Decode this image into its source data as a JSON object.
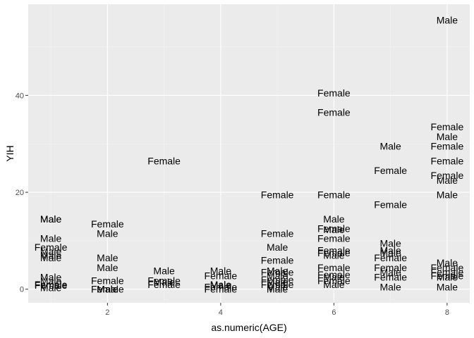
{
  "chart_data": {
    "type": "scatter",
    "geom": "text",
    "xlabel": "as.numeric(AGE)",
    "ylabel": "YIH",
    "xlim": [
      0.6,
      8.4
    ],
    "ylim": [
      -2.8,
      58.8
    ],
    "x_ticks": [
      2,
      4,
      6,
      8
    ],
    "y_ticks": [
      0,
      20,
      40
    ],
    "grid": true,
    "background": "#EBEBEB",
    "points": [
      {
        "x": 1,
        "y": 14.5,
        "label": "Male"
      },
      {
        "x": 1,
        "y": 14.5,
        "label": "Male"
      },
      {
        "x": 1,
        "y": 10.5,
        "label": "Male"
      },
      {
        "x": 1,
        "y": 8.7,
        "label": "Female"
      },
      {
        "x": 1,
        "y": 7.8,
        "label": "Male"
      },
      {
        "x": 1,
        "y": 7.0,
        "label": "Male"
      },
      {
        "x": 1,
        "y": 6.5,
        "label": "Male"
      },
      {
        "x": 1,
        "y": 2.5,
        "label": "Male"
      },
      {
        "x": 1,
        "y": 1.7,
        "label": "Male"
      },
      {
        "x": 1,
        "y": 1.0,
        "label": "Female"
      },
      {
        "x": 1,
        "y": 0.8,
        "label": "Female"
      },
      {
        "x": 1,
        "y": 0.3,
        "label": "Male"
      },
      {
        "x": 2,
        "y": 13.5,
        "label": "Female"
      },
      {
        "x": 2,
        "y": 11.5,
        "label": "Male"
      },
      {
        "x": 2,
        "y": 6.5,
        "label": "Male"
      },
      {
        "x": 2,
        "y": 4.5,
        "label": "Male"
      },
      {
        "x": 2,
        "y": 1.8,
        "label": "Female"
      },
      {
        "x": 2,
        "y": 0.0,
        "label": "Female"
      },
      {
        "x": 2,
        "y": 0.0,
        "label": "Male"
      },
      {
        "x": 2,
        "y": 0.0,
        "label": "Male"
      },
      {
        "x": 3,
        "y": 26.5,
        "label": "Female"
      },
      {
        "x": 3,
        "y": 3.8,
        "label": "Male"
      },
      {
        "x": 3,
        "y": 1.8,
        "label": "Female"
      },
      {
        "x": 3,
        "y": 1.5,
        "label": "Male"
      },
      {
        "x": 3,
        "y": 1.0,
        "label": "Female"
      },
      {
        "x": 4,
        "y": 3.8,
        "label": "Male"
      },
      {
        "x": 4,
        "y": 2.8,
        "label": "Female"
      },
      {
        "x": 4,
        "y": 1.0,
        "label": "Male"
      },
      {
        "x": 4,
        "y": 0.8,
        "label": "Male"
      },
      {
        "x": 4,
        "y": 0.5,
        "label": "Female"
      },
      {
        "x": 4,
        "y": 0.0,
        "label": "Female"
      },
      {
        "x": 5,
        "y": 19.5,
        "label": "Female"
      },
      {
        "x": 5,
        "y": 11.5,
        "label": "Female"
      },
      {
        "x": 5,
        "y": 8.7,
        "label": "Male"
      },
      {
        "x": 5,
        "y": 6.0,
        "label": "Female"
      },
      {
        "x": 5,
        "y": 3.8,
        "label": "Male"
      },
      {
        "x": 5,
        "y": 3.5,
        "label": "Female"
      },
      {
        "x": 5,
        "y": 2.8,
        "label": "Male"
      },
      {
        "x": 5,
        "y": 2.0,
        "label": "Female"
      },
      {
        "x": 5,
        "y": 1.5,
        "label": "Male"
      },
      {
        "x": 5,
        "y": 1.0,
        "label": "Female"
      },
      {
        "x": 5,
        "y": 0.5,
        "label": "Male"
      },
      {
        "x": 5,
        "y": 0.0,
        "label": "Male"
      },
      {
        "x": 6,
        "y": 40.5,
        "label": "Female"
      },
      {
        "x": 6,
        "y": 36.5,
        "label": "Female"
      },
      {
        "x": 6,
        "y": 19.5,
        "label": "Female"
      },
      {
        "x": 6,
        "y": 14.5,
        "label": "Male"
      },
      {
        "x": 6,
        "y": 12.5,
        "label": "Female"
      },
      {
        "x": 6,
        "y": 12.3,
        "label": "Male"
      },
      {
        "x": 6,
        "y": 10.5,
        "label": "Female"
      },
      {
        "x": 6,
        "y": 8.0,
        "label": "Female"
      },
      {
        "x": 6,
        "y": 7.5,
        "label": "Female"
      },
      {
        "x": 6,
        "y": 7.0,
        "label": "Male"
      },
      {
        "x": 6,
        "y": 4.5,
        "label": "Female"
      },
      {
        "x": 6,
        "y": 3.0,
        "label": "Female"
      },
      {
        "x": 6,
        "y": 2.5,
        "label": "Male"
      },
      {
        "x": 6,
        "y": 1.8,
        "label": "Female"
      },
      {
        "x": 6,
        "y": 1.0,
        "label": "Male"
      },
      {
        "x": 7,
        "y": 29.5,
        "label": "Male"
      },
      {
        "x": 7,
        "y": 24.5,
        "label": "Female"
      },
      {
        "x": 7,
        "y": 17.5,
        "label": "Female"
      },
      {
        "x": 7,
        "y": 9.5,
        "label": "Male"
      },
      {
        "x": 7,
        "y": 8.0,
        "label": "Male"
      },
      {
        "x": 7,
        "y": 7.5,
        "label": "Male"
      },
      {
        "x": 7,
        "y": 6.5,
        "label": "Female"
      },
      {
        "x": 7,
        "y": 4.5,
        "label": "Female"
      },
      {
        "x": 7,
        "y": 3.5,
        "label": "Male"
      },
      {
        "x": 7,
        "y": 2.5,
        "label": "Female"
      },
      {
        "x": 7,
        "y": 0.5,
        "label": "Male"
      },
      {
        "x": 8,
        "y": 55.5,
        "label": "Male"
      },
      {
        "x": 8,
        "y": 33.5,
        "label": "Female"
      },
      {
        "x": 8,
        "y": 31.5,
        "label": "Male"
      },
      {
        "x": 8,
        "y": 29.5,
        "label": "Female"
      },
      {
        "x": 8,
        "y": 26.5,
        "label": "Female"
      },
      {
        "x": 8,
        "y": 23.5,
        "label": "Female"
      },
      {
        "x": 8,
        "y": 22.5,
        "label": "Male"
      },
      {
        "x": 8,
        "y": 19.5,
        "label": "Male"
      },
      {
        "x": 8,
        "y": 5.5,
        "label": "Male"
      },
      {
        "x": 8,
        "y": 4.5,
        "label": "Female"
      },
      {
        "x": 8,
        "y": 3.5,
        "label": "Female"
      },
      {
        "x": 8,
        "y": 2.8,
        "label": "Female"
      },
      {
        "x": 8,
        "y": 2.5,
        "label": "Male"
      },
      {
        "x": 8,
        "y": 0.5,
        "label": "Male"
      }
    ]
  }
}
